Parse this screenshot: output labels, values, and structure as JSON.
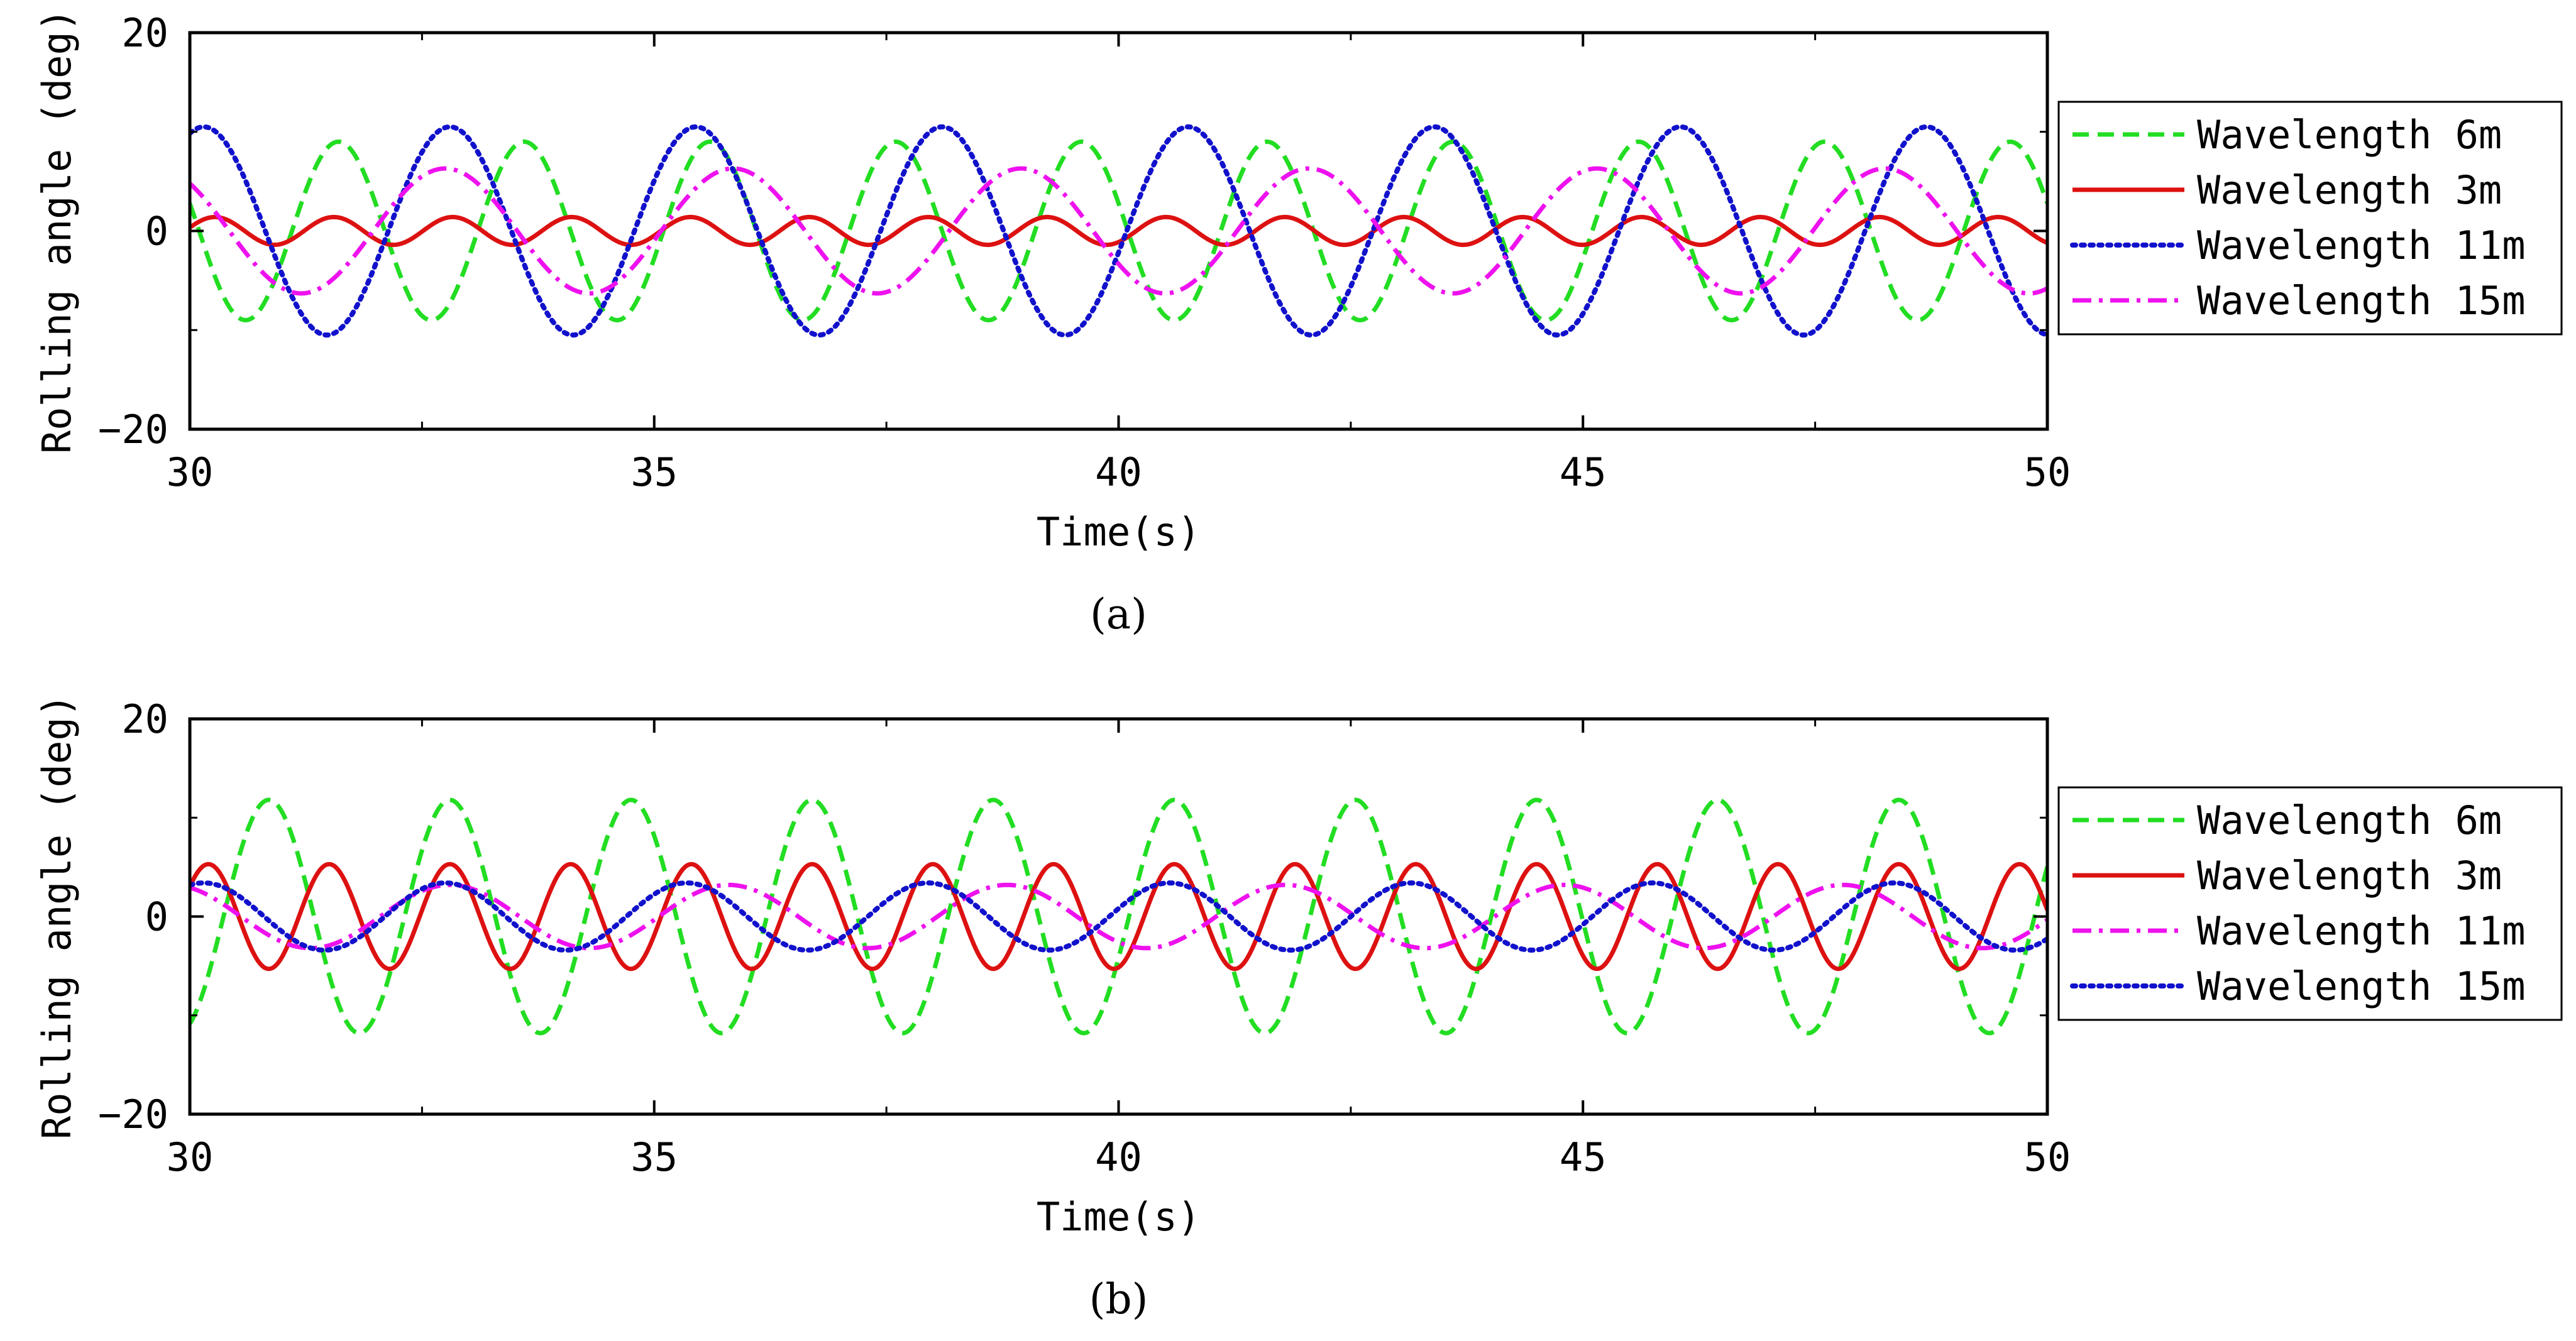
{
  "chart_data": [
    {
      "type": "line",
      "panel_label": "(a)",
      "xlabel": "Time(s)",
      "ylabel": "Rolling angle (deg)",
      "xlim": [
        30,
        50
      ],
      "ylim": [
        -20,
        20
      ],
      "x_ticks": [
        "30",
        "35",
        "40",
        "45",
        "50"
      ],
      "y_ticks": [
        "20",
        "0",
        "−20"
      ],
      "legend_position": "right",
      "series": [
        {
          "name": "Wavelength 6m",
          "color": "#22dd22",
          "dash": "dashed",
          "amplitude": 9,
          "period": 2.0,
          "phase_x": 31.6
        },
        {
          "name": "Wavelength 3m",
          "color": "#dd1111",
          "dash": "solid",
          "amplitude": 1.4,
          "period": 1.28,
          "phase_x": 31.55
        },
        {
          "name": "Wavelength 11m",
          "color": "#1111cc",
          "dash": "dotted",
          "amplitude": 10.5,
          "period": 2.65,
          "phase_x": 32.8
        },
        {
          "name": "Wavelength 15m",
          "color": "#ee11ee",
          "dash": "dashdot",
          "amplitude": 6.3,
          "period": 3.1,
          "phase_x": 32.75
        }
      ]
    },
    {
      "type": "line",
      "panel_label": "(b)",
      "xlabel": "Time(s)",
      "ylabel": "Rolling angle (deg)",
      "xlim": [
        30,
        50
      ],
      "ylim": [
        -20,
        20
      ],
      "x_ticks": [
        "30",
        "35",
        "40",
        "45",
        "50"
      ],
      "y_ticks": [
        "20",
        "0",
        "−20"
      ],
      "legend_position": "right",
      "series": [
        {
          "name": "Wavelength 6m",
          "color": "#22dd22",
          "dash": "dashed",
          "amplitude": 11.8,
          "period": 1.95,
          "phase_x": 30.85
        },
        {
          "name": "Wavelength 3m",
          "color": "#dd1111",
          "dash": "solid",
          "amplitude": 5.3,
          "period": 1.3,
          "phase_x": 30.2
        },
        {
          "name": "Wavelength 11m",
          "color": "#ee11ee",
          "dash": "dashdot",
          "amplitude": 3.2,
          "period": 3.0,
          "phase_x": 32.8
        },
        {
          "name": "Wavelength 15m",
          "color": "#1111cc",
          "dash": "dotted",
          "amplitude": 3.4,
          "period": 2.6,
          "phase_x": 32.75
        }
      ]
    }
  ]
}
